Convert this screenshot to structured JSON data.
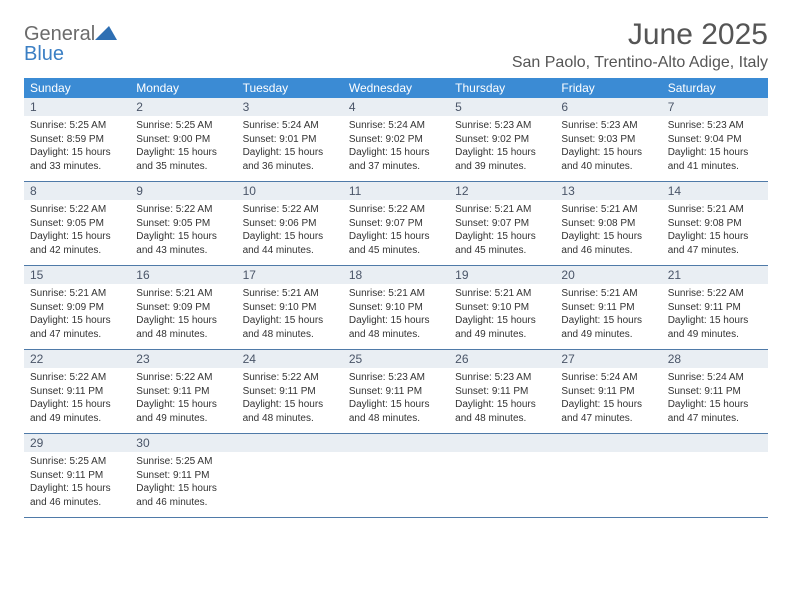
{
  "logo": {
    "text1": "General",
    "text2": "Blue"
  },
  "title": "June 2025",
  "location": "San Paolo, Trentino-Alto Adige, Italy",
  "colors": {
    "header_bg": "#3b8bd4",
    "header_text": "#ffffff",
    "numrow_bg": "#e9eef3",
    "border": "#4f7aa8",
    "title_text": "#555555",
    "body_text": "#333333",
    "logo_gray": "#6b6b6b",
    "logo_blue": "#3b7fc4"
  },
  "layout": {
    "cols": 7,
    "weeks": 5
  },
  "dow": [
    "Sunday",
    "Monday",
    "Tuesday",
    "Wednesday",
    "Thursday",
    "Friday",
    "Saturday"
  ],
  "weeks": [
    [
      {
        "n": "1",
        "sr": "5:25 AM",
        "ss": "8:59 PM",
        "dl": "15 hours and 33 minutes."
      },
      {
        "n": "2",
        "sr": "5:25 AM",
        "ss": "9:00 PM",
        "dl": "15 hours and 35 minutes."
      },
      {
        "n": "3",
        "sr": "5:24 AM",
        "ss": "9:01 PM",
        "dl": "15 hours and 36 minutes."
      },
      {
        "n": "4",
        "sr": "5:24 AM",
        "ss": "9:02 PM",
        "dl": "15 hours and 37 minutes."
      },
      {
        "n": "5",
        "sr": "5:23 AM",
        "ss": "9:02 PM",
        "dl": "15 hours and 39 minutes."
      },
      {
        "n": "6",
        "sr": "5:23 AM",
        "ss": "9:03 PM",
        "dl": "15 hours and 40 minutes."
      },
      {
        "n": "7",
        "sr": "5:23 AM",
        "ss": "9:04 PM",
        "dl": "15 hours and 41 minutes."
      }
    ],
    [
      {
        "n": "8",
        "sr": "5:22 AM",
        "ss": "9:05 PM",
        "dl": "15 hours and 42 minutes."
      },
      {
        "n": "9",
        "sr": "5:22 AM",
        "ss": "9:05 PM",
        "dl": "15 hours and 43 minutes."
      },
      {
        "n": "10",
        "sr": "5:22 AM",
        "ss": "9:06 PM",
        "dl": "15 hours and 44 minutes."
      },
      {
        "n": "11",
        "sr": "5:22 AM",
        "ss": "9:07 PM",
        "dl": "15 hours and 45 minutes."
      },
      {
        "n": "12",
        "sr": "5:21 AM",
        "ss": "9:07 PM",
        "dl": "15 hours and 45 minutes."
      },
      {
        "n": "13",
        "sr": "5:21 AM",
        "ss": "9:08 PM",
        "dl": "15 hours and 46 minutes."
      },
      {
        "n": "14",
        "sr": "5:21 AM",
        "ss": "9:08 PM",
        "dl": "15 hours and 47 minutes."
      }
    ],
    [
      {
        "n": "15",
        "sr": "5:21 AM",
        "ss": "9:09 PM",
        "dl": "15 hours and 47 minutes."
      },
      {
        "n": "16",
        "sr": "5:21 AM",
        "ss": "9:09 PM",
        "dl": "15 hours and 48 minutes."
      },
      {
        "n": "17",
        "sr": "5:21 AM",
        "ss": "9:10 PM",
        "dl": "15 hours and 48 minutes."
      },
      {
        "n": "18",
        "sr": "5:21 AM",
        "ss": "9:10 PM",
        "dl": "15 hours and 48 minutes."
      },
      {
        "n": "19",
        "sr": "5:21 AM",
        "ss": "9:10 PM",
        "dl": "15 hours and 49 minutes."
      },
      {
        "n": "20",
        "sr": "5:21 AM",
        "ss": "9:11 PM",
        "dl": "15 hours and 49 minutes."
      },
      {
        "n": "21",
        "sr": "5:22 AM",
        "ss": "9:11 PM",
        "dl": "15 hours and 49 minutes."
      }
    ],
    [
      {
        "n": "22",
        "sr": "5:22 AM",
        "ss": "9:11 PM",
        "dl": "15 hours and 49 minutes."
      },
      {
        "n": "23",
        "sr": "5:22 AM",
        "ss": "9:11 PM",
        "dl": "15 hours and 49 minutes."
      },
      {
        "n": "24",
        "sr": "5:22 AM",
        "ss": "9:11 PM",
        "dl": "15 hours and 48 minutes."
      },
      {
        "n": "25",
        "sr": "5:23 AM",
        "ss": "9:11 PM",
        "dl": "15 hours and 48 minutes."
      },
      {
        "n": "26",
        "sr": "5:23 AM",
        "ss": "9:11 PM",
        "dl": "15 hours and 48 minutes."
      },
      {
        "n": "27",
        "sr": "5:24 AM",
        "ss": "9:11 PM",
        "dl": "15 hours and 47 minutes."
      },
      {
        "n": "28",
        "sr": "5:24 AM",
        "ss": "9:11 PM",
        "dl": "15 hours and 47 minutes."
      }
    ],
    [
      {
        "n": "29",
        "sr": "5:25 AM",
        "ss": "9:11 PM",
        "dl": "15 hours and 46 minutes."
      },
      {
        "n": "30",
        "sr": "5:25 AM",
        "ss": "9:11 PM",
        "dl": "15 hours and 46 minutes."
      },
      null,
      null,
      null,
      null,
      null
    ]
  ],
  "labels": {
    "sunrise": "Sunrise:",
    "sunset": "Sunset:",
    "daylight": "Daylight:"
  }
}
